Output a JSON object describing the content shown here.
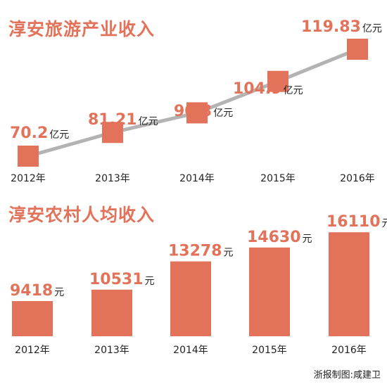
{
  "colors": {
    "accent": "#e2735a",
    "line": "#b3b3b3",
    "text": "#222222"
  },
  "credit": "浙报制图:咸建卫",
  "chart_data": [
    {
      "type": "line",
      "title": "淳安旅游产业收入",
      "categories": [
        "2012年",
        "2013年",
        "2014年",
        "2015年",
        "2016年"
      ],
      "values": [
        70.2,
        81.21,
        90.3,
        104.9,
        119.83
      ],
      "value_labels": [
        "70.2",
        "81.21",
        "90.3",
        "104.9",
        "119.83"
      ],
      "unit": "亿元",
      "ylim": [
        60,
        130
      ],
      "grid": false,
      "legend": "none"
    },
    {
      "type": "bar",
      "title": "淳安农村人均收入",
      "categories": [
        "2012年",
        "2013年",
        "2014年",
        "2015年",
        "2016年"
      ],
      "values": [
        9418,
        10531,
        13278,
        14630,
        16110
      ],
      "value_labels": [
        "9418",
        "10531",
        "13278",
        "14630",
        "16110"
      ],
      "unit": "元",
      "ylim": [
        6000,
        17000
      ],
      "grid": false,
      "legend": "none"
    }
  ]
}
